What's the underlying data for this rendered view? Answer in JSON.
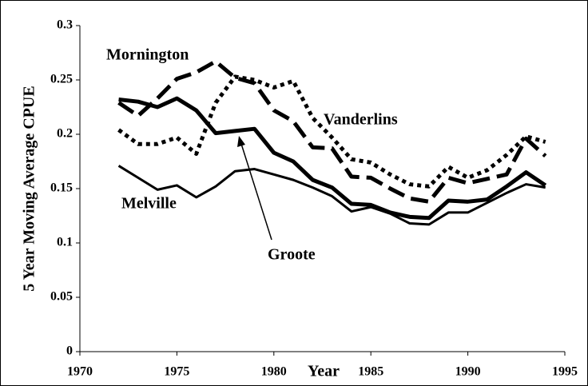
{
  "chart_data": {
    "type": "line",
    "x_label": "Year",
    "y_label": "5 Year Moving Average CPUE",
    "x": [
      1972,
      1973,
      1974,
      1975,
      1976,
      1977,
      1978,
      1979,
      1980,
      1981,
      1982,
      1983,
      1984,
      1985,
      1986,
      1987,
      1988,
      1989,
      1990,
      1991,
      1992,
      1993,
      1994
    ],
    "series": [
      {
        "name": "Mornington",
        "color": "#000000",
        "dash": "dashed",
        "width": 5,
        "values": [
          0.229,
          0.217,
          0.233,
          0.251,
          0.257,
          0.267,
          0.252,
          0.247,
          0.222,
          0.212,
          0.188,
          0.187,
          0.161,
          0.16,
          0.15,
          0.141,
          0.138,
          0.16,
          0.155,
          0.159,
          0.163,
          0.196,
          0.18
        ]
      },
      {
        "name": "Vanderlins",
        "color": "#000000",
        "dash": "dotted",
        "width": 5,
        "values": [
          0.204,
          0.191,
          0.191,
          0.197,
          0.182,
          0.229,
          0.253,
          0.25,
          0.243,
          0.249,
          0.215,
          0.197,
          0.177,
          0.174,
          0.163,
          0.154,
          0.152,
          0.17,
          0.16,
          0.167,
          0.181,
          0.198,
          0.193
        ]
      },
      {
        "name": "Melville",
        "color": "#000000",
        "dash": "solid",
        "width": 3,
        "values": [
          0.171,
          0.16,
          0.149,
          0.153,
          0.142,
          0.152,
          0.166,
          0.168,
          0.163,
          0.158,
          0.151,
          0.143,
          0.129,
          0.133,
          0.127,
          0.118,
          0.117,
          0.128,
          0.128,
          0.137,
          0.146,
          0.154,
          0.151
        ]
      },
      {
        "name": "Groote",
        "color": "#000000",
        "dash": "solid",
        "width": 5,
        "values": [
          0.232,
          0.23,
          0.225,
          0.233,
          0.222,
          0.201,
          0.203,
          0.205,
          0.183,
          0.175,
          0.158,
          0.151,
          0.136,
          0.135,
          0.128,
          0.124,
          0.123,
          0.139,
          0.138,
          0.14,
          0.152,
          0.165,
          0.153
        ]
      }
    ],
    "xlim": [
      1970,
      1995
    ],
    "ylim": [
      0,
      0.3
    ],
    "xticks": [
      1970,
      1975,
      1980,
      1985,
      1990,
      1995
    ],
    "yticks": [
      0,
      0.05,
      0.1,
      0.15,
      0.2,
      0.25,
      0.3
    ]
  }
}
